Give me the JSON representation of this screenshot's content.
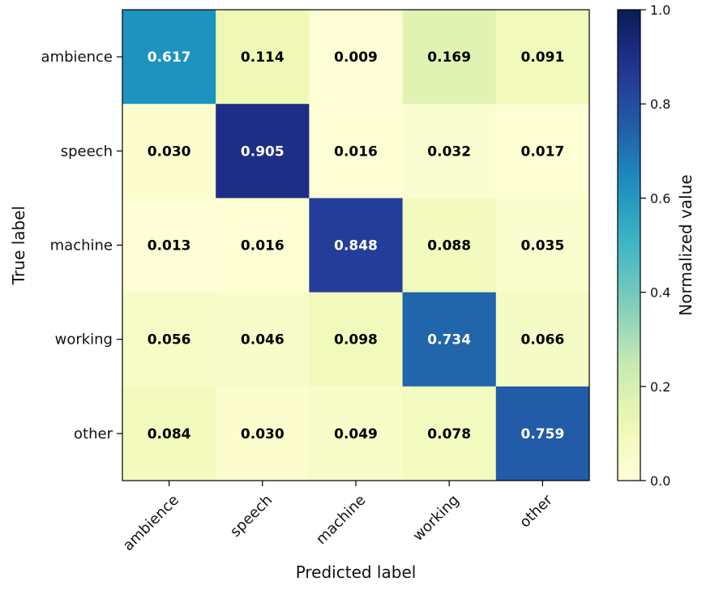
{
  "chart_data": {
    "type": "heatmap",
    "title": "",
    "xlabel": "Predicted label",
    "ylabel": "True label",
    "x_categories": [
      "ambience",
      "speech",
      "machine",
      "working",
      "other"
    ],
    "y_categories": [
      "ambience",
      "speech",
      "machine",
      "working",
      "other"
    ],
    "values": [
      [
        0.617,
        0.114,
        0.009,
        0.169,
        0.091
      ],
      [
        0.03,
        0.905,
        0.016,
        0.032,
        0.017
      ],
      [
        0.013,
        0.016,
        0.848,
        0.088,
        0.035
      ],
      [
        0.056,
        0.046,
        0.098,
        0.734,
        0.066
      ],
      [
        0.084,
        0.03,
        0.049,
        0.078,
        0.759
      ]
    ],
    "value_format": "3 decimals",
    "colormap": "YlGnBu",
    "colorbar": {
      "label": "Normalized value",
      "range": [
        0.0,
        1.0
      ],
      "ticks": [
        0.0,
        0.2,
        0.4,
        0.6,
        0.8,
        1.0
      ],
      "tick_labels": [
        "0.0",
        "0.2",
        "0.4",
        "0.6",
        "0.8",
        "1.0"
      ]
    }
  }
}
